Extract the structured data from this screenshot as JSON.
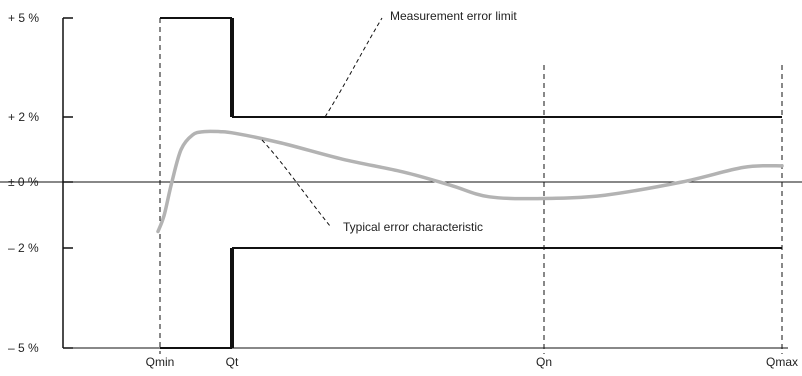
{
  "chart_data": {
    "type": "line",
    "title": "",
    "xlabel": "",
    "ylabel": "",
    "ylim": [
      -5,
      5
    ],
    "y_ticks": [
      {
        "value": 5,
        "label": "+ 5 %"
      },
      {
        "value": 2,
        "label": "+ 2 %"
      },
      {
        "value": 0,
        "label": "± 0 %"
      },
      {
        "value": -2,
        "label": "– 2 %"
      },
      {
        "value": -5,
        "label": "– 5 %"
      }
    ],
    "x_ticks": [
      {
        "name": "Qmin",
        "label": "Qmin"
      },
      {
        "name": "Qt",
        "label": "Qt"
      },
      {
        "name": "Qn",
        "label": "Qn"
      },
      {
        "name": "Qmax",
        "label": "Qmax"
      }
    ],
    "series": [
      {
        "key": "limit",
        "color": "#111111",
        "segments": [
          {
            "x": [
              "Qmin",
              "Qt"
            ],
            "y": 5
          },
          {
            "x": [
              "Qmin",
              "Qt"
            ],
            "y": -5
          },
          {
            "x": [
              "Qt",
              "Qmax"
            ],
            "y": 2
          },
          {
            "x": [
              "Qt",
              "Qmax"
            ],
            "y": -2
          }
        ]
      },
      {
        "key": "typical",
        "color": "#b3b3b3",
        "points": [
          [
            0.0,
            -1.5
          ],
          [
            0.08,
            -1.0
          ],
          [
            0.18,
            0.0
          ],
          [
            0.3,
            1.0
          ],
          [
            0.45,
            1.45
          ],
          [
            0.6,
            1.55
          ],
          [
            0.8,
            1.55
          ],
          [
            1.0,
            1.5
          ],
          [
            1.6,
            1.2
          ],
          [
            2.4,
            0.7
          ],
          [
            3.2,
            0.3
          ],
          [
            3.8,
            -0.1
          ],
          [
            4.3,
            -0.45
          ],
          [
            5.0,
            -0.5
          ],
          [
            5.8,
            -0.4
          ],
          [
            6.8,
            0.0
          ],
          [
            7.6,
            0.45
          ],
          [
            8.1,
            0.5
          ]
        ]
      }
    ],
    "annotations": [
      {
        "name": "measurement-error-limit",
        "text": "Measurement error limit"
      },
      {
        "name": "typical-error-characteristic",
        "text": "Typical error characteristic"
      }
    ]
  }
}
